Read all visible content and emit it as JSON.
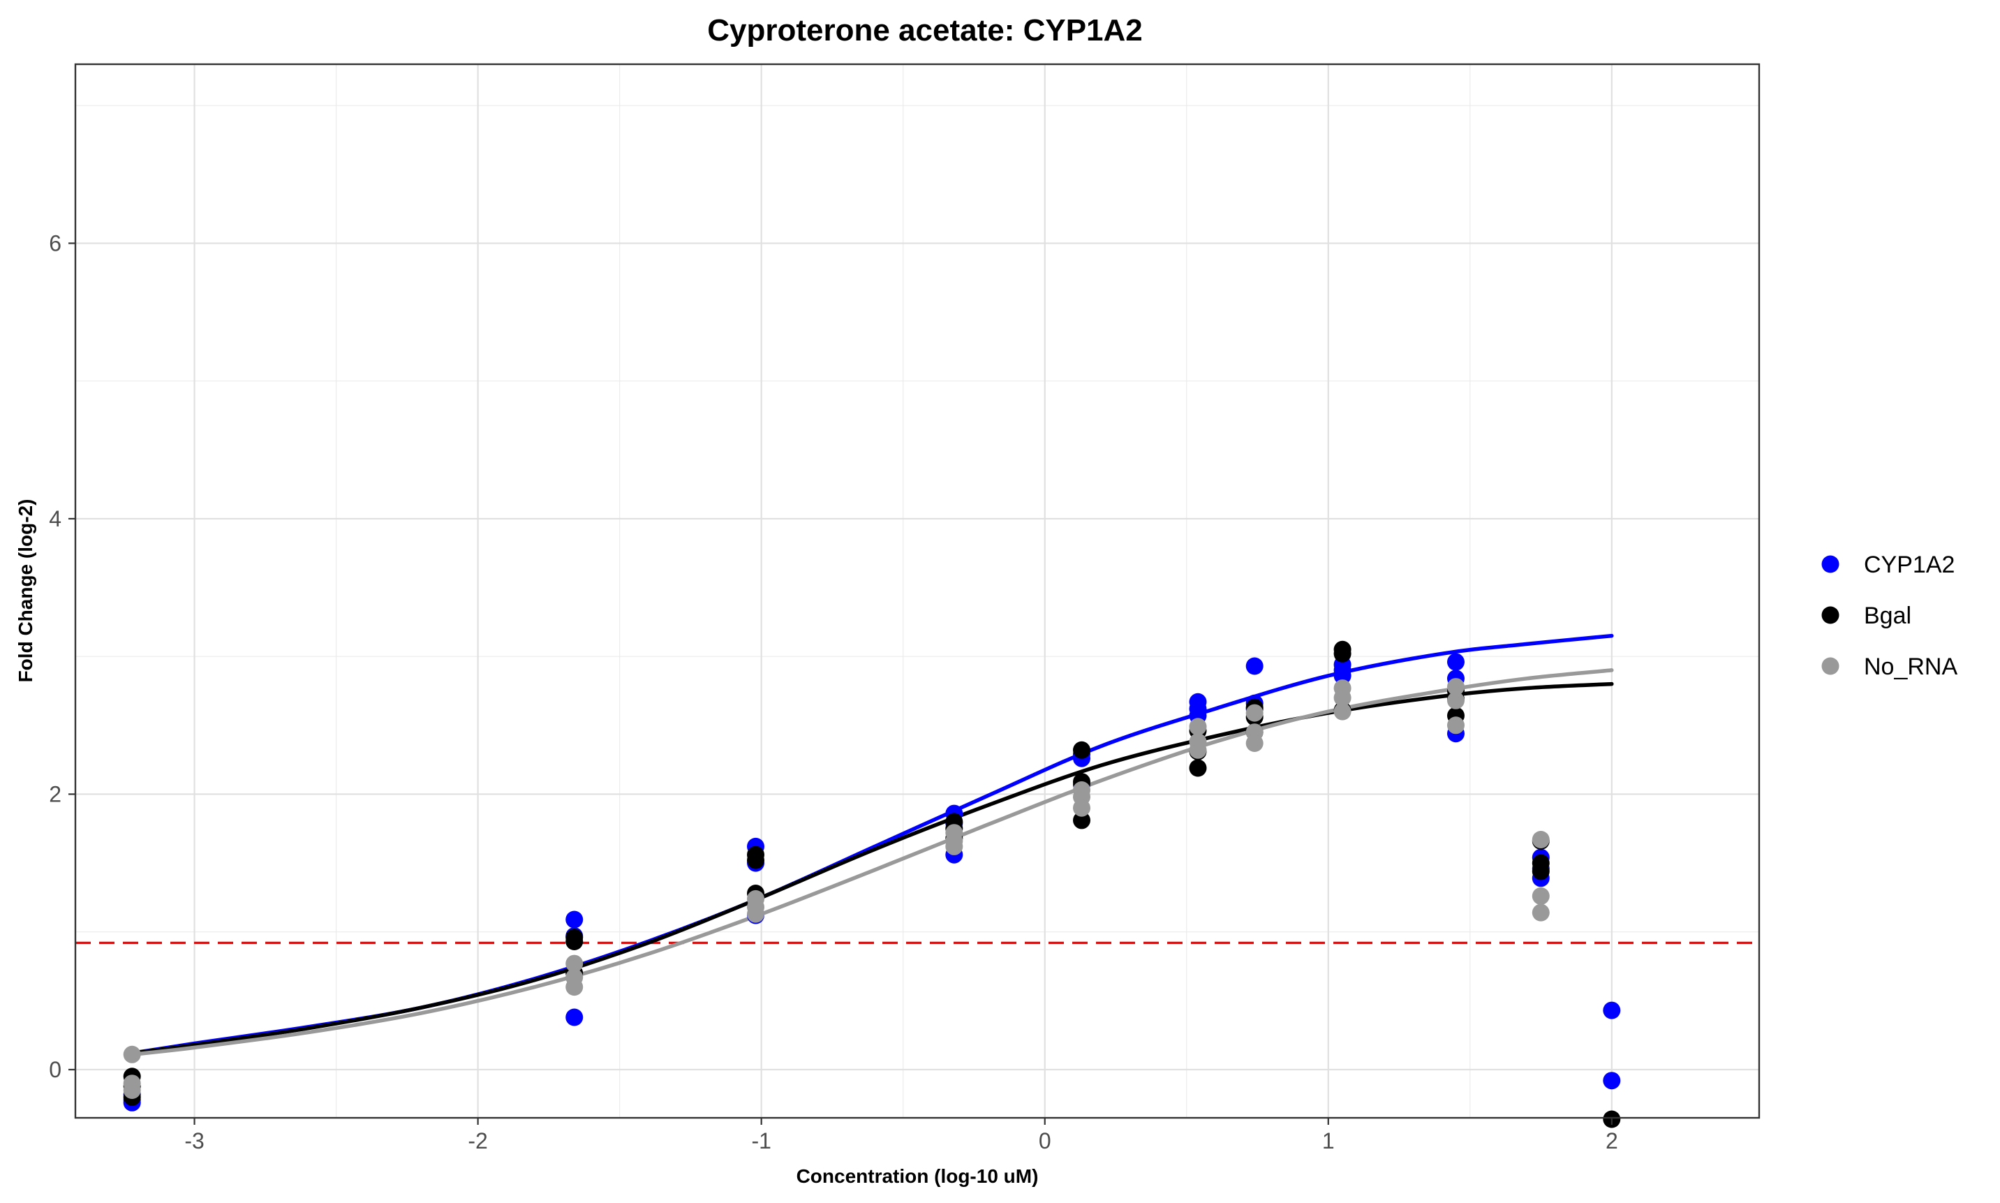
{
  "chart_data": {
    "type": "scatter",
    "title": "Cyproterone acetate: CYP1A2",
    "xlabel": "Concentration (log-10 uM)",
    "ylabel": "Fold Change (log-2)",
    "xlim": [
      -3.42,
      2.52
    ],
    "ylim": [
      -0.35,
      7.3
    ],
    "x_ticks": [
      -3,
      -2,
      -1,
      0,
      1,
      2
    ],
    "y_ticks": [
      0,
      2,
      4,
      6
    ],
    "grid": true,
    "legend_position": "right",
    "threshold": {
      "y": 0.92,
      "color": "#ff0000",
      "style": "dashed"
    },
    "series": [
      {
        "name": "CYP1A2",
        "color": "#0000ff",
        "points": [
          [
            -3.22,
            -0.22
          ],
          [
            -3.22,
            -0.24
          ],
          [
            -3.22,
            -0.18
          ],
          [
            -1.66,
            1.09
          ],
          [
            -1.66,
            0.97
          ],
          [
            -1.66,
            0.38
          ],
          [
            -1.02,
            1.62
          ],
          [
            -1.02,
            1.5
          ],
          [
            -1.02,
            1.12
          ],
          [
            -0.32,
            1.86
          ],
          [
            -0.32,
            1.79
          ],
          [
            -0.32,
            1.56
          ],
          [
            0.13,
            2.29
          ],
          [
            0.13,
            2.26
          ],
          [
            0.13,
            2.07
          ],
          [
            0.54,
            2.67
          ],
          [
            0.54,
            2.62
          ],
          [
            0.54,
            2.57
          ],
          [
            0.74,
            2.93
          ],
          [
            0.74,
            2.66
          ],
          [
            0.74,
            2.62
          ],
          [
            1.05,
            2.94
          ],
          [
            1.05,
            2.9
          ],
          [
            1.05,
            2.86
          ],
          [
            1.45,
            2.96
          ],
          [
            1.45,
            2.84
          ],
          [
            1.45,
            2.44
          ],
          [
            1.75,
            1.54
          ],
          [
            1.75,
            1.46
          ],
          [
            1.75,
            1.39
          ],
          [
            2.0,
            0.43
          ],
          [
            2.0,
            -0.08
          ]
        ],
        "fit": [
          [
            -3.22,
            0.12
          ],
          [
            -3.0,
            0.19
          ],
          [
            -2.6,
            0.31
          ],
          [
            -2.2,
            0.45
          ],
          [
            -1.8,
            0.66
          ],
          [
            -1.4,
            0.93
          ],
          [
            -1.0,
            1.25
          ],
          [
            -0.6,
            1.62
          ],
          [
            -0.2,
            1.99
          ],
          [
            0.2,
            2.35
          ],
          [
            0.6,
            2.62
          ],
          [
            1.0,
            2.86
          ],
          [
            1.4,
            3.02
          ],
          [
            1.7,
            3.09
          ],
          [
            2.0,
            3.15
          ]
        ]
      },
      {
        "name": "Bgal",
        "color": "#000000",
        "points": [
          [
            -3.22,
            -0.05
          ],
          [
            -3.22,
            -0.12
          ],
          [
            -3.22,
            -0.2
          ],
          [
            -1.66,
            0.96
          ],
          [
            -1.66,
            0.93
          ],
          [
            -1.66,
            0.7
          ],
          [
            -1.02,
            1.56
          ],
          [
            -1.02,
            1.52
          ],
          [
            -1.02,
            1.28
          ],
          [
            -0.32,
            1.8
          ],
          [
            -0.32,
            1.75
          ],
          [
            -0.32,
            1.68
          ],
          [
            0.13,
            2.32
          ],
          [
            0.13,
            2.09
          ],
          [
            0.13,
            1.81
          ],
          [
            0.54,
            2.31
          ],
          [
            0.54,
            2.19
          ],
          [
            0.54,
            2.46
          ],
          [
            0.74,
            2.45
          ],
          [
            0.74,
            2.63
          ],
          [
            0.74,
            2.56
          ],
          [
            1.05,
            3.05
          ],
          [
            1.05,
            3.02
          ],
          [
            1.05,
            2.61
          ],
          [
            1.45,
            2.69
          ],
          [
            1.45,
            2.57
          ],
          [
            1.45,
            2.75
          ],
          [
            1.75,
            1.5
          ],
          [
            1.75,
            1.44
          ],
          [
            1.75,
            1.66
          ],
          [
            2.0,
            -0.36
          ]
        ],
        "fit": [
          [
            -3.22,
            0.12
          ],
          [
            -3.0,
            0.18
          ],
          [
            -2.6,
            0.3
          ],
          [
            -2.2,
            0.45
          ],
          [
            -1.8,
            0.65
          ],
          [
            -1.4,
            0.92
          ],
          [
            -1.0,
            1.25
          ],
          [
            -0.6,
            1.6
          ],
          [
            -0.2,
            1.92
          ],
          [
            0.2,
            2.21
          ],
          [
            0.6,
            2.42
          ],
          [
            1.0,
            2.59
          ],
          [
            1.4,
            2.71
          ],
          [
            1.7,
            2.77
          ],
          [
            2.0,
            2.8
          ]
        ]
      },
      {
        "name": "No_RNA",
        "color": "#999999",
        "points": [
          [
            -3.22,
            0.11
          ],
          [
            -3.22,
            -0.1
          ],
          [
            -3.22,
            -0.15
          ],
          [
            -1.66,
            0.77
          ],
          [
            -1.66,
            0.67
          ],
          [
            -1.66,
            0.6
          ],
          [
            -1.02,
            1.24
          ],
          [
            -1.02,
            1.18
          ],
          [
            -1.02,
            1.13
          ],
          [
            -0.32,
            1.72
          ],
          [
            -0.32,
            1.66
          ],
          [
            -0.32,
            1.62
          ],
          [
            0.13,
            2.03
          ],
          [
            0.13,
            1.98
          ],
          [
            0.13,
            1.9
          ],
          [
            0.54,
            2.49
          ],
          [
            0.54,
            2.38
          ],
          [
            0.54,
            2.32
          ],
          [
            0.74,
            2.59
          ],
          [
            0.74,
            2.45
          ],
          [
            0.74,
            2.37
          ],
          [
            1.05,
            2.77
          ],
          [
            1.05,
            2.7
          ],
          [
            1.05,
            2.6
          ],
          [
            1.45,
            2.78
          ],
          [
            1.45,
            2.68
          ],
          [
            1.45,
            2.5
          ],
          [
            1.75,
            1.67
          ],
          [
            1.75,
            1.26
          ],
          [
            1.75,
            1.14
          ]
        ],
        "fit": [
          [
            -3.22,
            0.11
          ],
          [
            -3.0,
            0.16
          ],
          [
            -2.6,
            0.27
          ],
          [
            -2.2,
            0.41
          ],
          [
            -1.8,
            0.6
          ],
          [
            -1.4,
            0.84
          ],
          [
            -1.0,
            1.13
          ],
          [
            -0.6,
            1.45
          ],
          [
            -0.2,
            1.78
          ],
          [
            0.2,
            2.1
          ],
          [
            0.6,
            2.38
          ],
          [
            1.0,
            2.6
          ],
          [
            1.4,
            2.75
          ],
          [
            1.7,
            2.84
          ],
          [
            2.0,
            2.9
          ]
        ]
      }
    ]
  }
}
